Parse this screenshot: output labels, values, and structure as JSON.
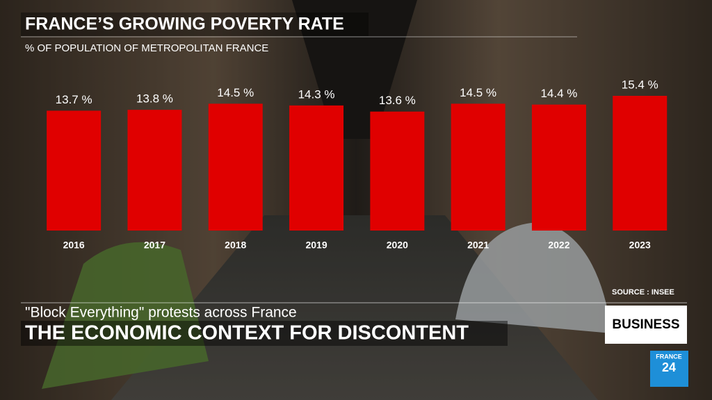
{
  "chart_data": {
    "type": "bar",
    "title": "FRANCE’S GROWING POVERTY RATE",
    "subtitle": "% OF POPULATION OF METROPOLITAN FRANCE",
    "categories": [
      "2016",
      "2017",
      "2018",
      "2019",
      "2020",
      "2021",
      "2022",
      "2023"
    ],
    "values": [
      13.7,
      13.8,
      14.5,
      14.3,
      13.6,
      14.5,
      14.4,
      15.4
    ],
    "value_labels": [
      "13.7 %",
      "13.8 %",
      "14.5 %",
      "14.3 %",
      "13.6 %",
      "14.5 %",
      "14.4 %",
      "15.4 %"
    ],
    "color": "#e00000",
    "source": "SOURCE : INSEE"
  },
  "lower_third": {
    "kicker": "\"Block Everything\" protests across France",
    "headline": "THE ECONOMIC CONTEXT FOR DISCONTENT",
    "section": "BUSINESS"
  },
  "logo": {
    "line1": "FRANCE",
    "line2": "24"
  }
}
